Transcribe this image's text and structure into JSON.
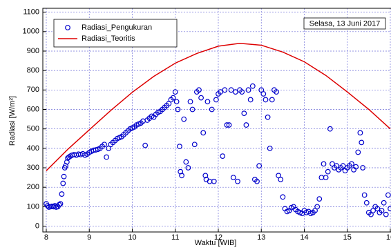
{
  "chart_data": {
    "type": "scatter",
    "annotation": "Selasa, 13 Juni 2017",
    "x_label": "Waktu [WIB]",
    "y_label": "Radiasi [W/m²]",
    "xlim": [
      7.92,
      16
    ],
    "ylim": [
      -30,
      1120
    ],
    "xticks": [
      8,
      9,
      10,
      11,
      12,
      13,
      14,
      15,
      16
    ],
    "yticks": [
      0,
      100,
      200,
      300,
      400,
      500,
      600,
      700,
      800,
      900,
      1000,
      1100
    ],
    "grid": true,
    "legend": "upper left",
    "series": [
      {
        "name": "Radiasi_Pengukuran",
        "type": "scatter",
        "color": "#0000cc",
        "x": [
          8.0,
          8.03,
          8.06,
          8.1,
          8.13,
          8.17,
          8.2,
          8.23,
          8.27,
          8.3,
          8.33,
          8.36,
          8.39,
          8.41,
          8.43,
          8.45,
          8.48,
          8.5,
          8.53,
          8.56,
          8.6,
          8.65,
          8.7,
          8.75,
          8.8,
          8.85,
          8.9,
          8.95,
          9.0,
          9.05,
          9.1,
          9.15,
          9.2,
          9.25,
          9.3,
          9.35,
          9.4,
          9.45,
          9.5,
          9.55,
          9.6,
          9.65,
          9.7,
          9.75,
          9.8,
          9.85,
          9.9,
          9.95,
          10.0,
          10.05,
          10.1,
          10.15,
          10.2,
          10.25,
          10.3,
          10.35,
          10.4,
          10.45,
          10.5,
          10.55,
          10.6,
          10.65,
          10.7,
          10.75,
          10.8,
          10.85,
          10.9,
          10.95,
          11.0,
          11.03,
          11.06,
          11.1,
          11.12,
          11.15,
          11.2,
          11.25,
          11.3,
          11.35,
          11.4,
          11.45,
          11.5,
          11.55,
          11.6,
          11.65,
          11.7,
          11.72,
          11.75,
          11.8,
          11.85,
          11.9,
          11.95,
          12.0,
          12.05,
          12.1,
          12.15,
          12.2,
          12.25,
          12.3,
          12.35,
          12.4,
          12.45,
          12.5,
          12.55,
          12.6,
          12.65,
          12.7,
          12.75,
          12.8,
          12.85,
          12.9,
          12.95,
          13.0,
          13.05,
          13.1,
          13.15,
          13.2,
          13.25,
          13.3,
          13.35,
          13.4,
          13.45,
          13.5,
          13.55,
          13.6,
          13.65,
          13.7,
          13.75,
          13.8,
          13.85,
          13.9,
          13.95,
          14.0,
          14.05,
          14.1,
          14.15,
          14.2,
          14.25,
          14.3,
          14.35,
          14.4,
          14.45,
          14.5,
          14.55,
          14.6,
          14.65,
          14.7,
          14.75,
          14.8,
          14.85,
          14.9,
          14.95,
          15.0,
          15.05,
          15.1,
          15.15,
          15.2,
          15.25,
          15.3,
          15.33,
          15.36,
          15.4,
          15.45,
          15.5,
          15.55,
          15.6,
          15.65,
          15.7,
          15.75,
          15.8,
          15.85,
          15.9,
          15.95,
          16.0
        ],
        "values": [
          115,
          105,
          98,
          100,
          102,
          100,
          105,
          98,
          100,
          110,
          115,
          165,
          220,
          255,
          300,
          310,
          330,
          350,
          355,
          360,
          365,
          368,
          365,
          370,
          368,
          372,
          365,
          370,
          378,
          385,
          390,
          392,
          395,
          400,
          410,
          420,
          355,
          400,
          420,
          430,
          440,
          450,
          455,
          460,
          470,
          480,
          490,
          500,
          505,
          510,
          520,
          525,
          530,
          540,
          415,
          545,
          555,
          565,
          560,
          575,
          585,
          590,
          600,
          610,
          620,
          630,
          650,
          660,
          690,
          640,
          600,
          410,
          280,
          260,
          550,
          330,
          300,
          640,
          600,
          420,
          690,
          700,
          660,
          480,
          260,
          240,
          640,
          230,
          600,
          230,
          650,
          680,
          690,
          360,
          700,
          520,
          520,
          700,
          250,
          690,
          230,
          700,
          690,
          580,
          520,
          700,
          650,
          720,
          240,
          230,
          310,
          700,
          680,
          650,
          560,
          400,
          650,
          700,
          690,
          260,
          240,
          150,
          90,
          75,
          80,
          95,
          100,
          85,
          75,
          70,
          65,
          80,
          70,
          75,
          65,
          70,
          80,
          100,
          140,
          250,
          320,
          250,
          280,
          500,
          320,
          300,
          310,
          290,
          300,
          310,
          285,
          300,
          310,
          320,
          290,
          305,
          380,
          480,
          430,
          300,
          160,
          120,
          70,
          60,
          80,
          100,
          90,
          70,
          80,
          120,
          60,
          160,
          90
        ]
      },
      {
        "name": "Radiasi_Teoritis",
        "type": "line",
        "color": "#dd0000",
        "x": [
          8,
          8.5,
          9,
          9.5,
          10,
          10.5,
          11,
          11.5,
          12,
          12.5,
          13,
          13.5,
          14,
          14.5,
          15,
          15.5,
          16
        ],
        "values": [
          285,
          395,
          495,
          595,
          688,
          770,
          838,
          888,
          925,
          940,
          930,
          895,
          845,
          775,
          690,
          600,
          500
        ]
      }
    ]
  }
}
